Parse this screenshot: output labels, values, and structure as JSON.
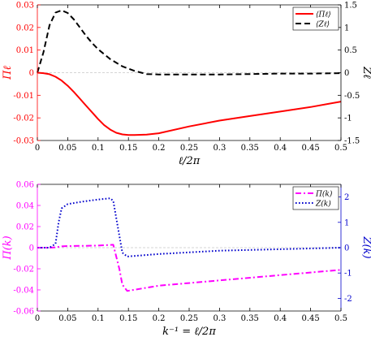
{
  "chart_data": [
    {
      "type": "line",
      "xlabel": "ℓ/2π",
      "ylabel_left": "Πℓ",
      "ylabel_right": "Zℓ",
      "xlim": [
        0,
        0.5
      ],
      "ylim_left": [
        -0.03,
        0.03
      ],
      "ylim_right": [
        -1.5,
        1.5
      ],
      "x_ticks": [
        "0",
        "0.05",
        "0.1",
        "0.15",
        "0.2",
        "0.25",
        "0.3",
        "0.35",
        "0.4",
        "0.45",
        "0.5"
      ],
      "y_ticks_left": [
        "0.03",
        "0.02",
        "0.01",
        "0",
        "-0.01",
        "-0.02",
        "-0.03"
      ],
      "y_ticks_right": [
        "1.5",
        "1",
        "0.5",
        "0",
        "-0.5",
        "-1",
        "-1.5"
      ],
      "legend_position": "top-right",
      "grid": false,
      "zero_line": true,
      "series": [
        {
          "name": "⟨Πℓ⟩",
          "axis": "left",
          "color": "#ff0000",
          "style": "solid",
          "x": [
            0,
            0.01,
            0.02,
            0.03,
            0.04,
            0.05,
            0.06,
            0.07,
            0.08,
            0.09,
            0.1,
            0.11,
            0.12,
            0.13,
            0.14,
            0.15,
            0.16,
            0.17,
            0.18,
            0.2,
            0.25,
            0.3,
            0.35,
            0.4,
            0.45,
            0.5
          ],
          "values": [
            0,
            -0.0002,
            -0.0007,
            -0.0018,
            -0.0035,
            -0.0058,
            -0.0085,
            -0.0115,
            -0.0145,
            -0.0175,
            -0.0205,
            -0.0232,
            -0.0252,
            -0.0266,
            -0.0273,
            -0.0276,
            -0.0276,
            -0.0275,
            -0.0274,
            -0.0268,
            -0.0238,
            -0.0212,
            -0.0192,
            -0.0172,
            -0.0152,
            -0.0128
          ]
        },
        {
          "name": "⟨Zℓ⟩",
          "axis": "right",
          "color": "#000000",
          "style": "dashed",
          "x": [
            0,
            0.01,
            0.02,
            0.03,
            0.04,
            0.05,
            0.06,
            0.07,
            0.08,
            0.09,
            0.1,
            0.12,
            0.14,
            0.16,
            0.18,
            0.2,
            0.25,
            0.3,
            0.35,
            0.4,
            0.45,
            0.5
          ],
          "values": [
            0,
            0.45,
            1.05,
            1.33,
            1.38,
            1.32,
            1.18,
            1.0,
            0.82,
            0.66,
            0.52,
            0.3,
            0.14,
            0.04,
            -0.03,
            -0.04,
            -0.04,
            -0.04,
            -0.03,
            -0.02,
            -0.02,
            -0.01
          ]
        }
      ]
    },
    {
      "type": "line",
      "xlabel": "k⁻¹ = ℓ/2π",
      "ylabel_left": "Π(k)",
      "ylabel_right": "Z(k)",
      "xlim": [
        0,
        0.5
      ],
      "ylim_left": [
        -0.06,
        0.06
      ],
      "ylim_right": [
        -2.5,
        2.5
      ],
      "x_ticks": [
        "0",
        "0.05",
        "0.1",
        "0.15",
        "0.2",
        "0.25",
        "0.3",
        "0.35",
        "0.4",
        "0.45",
        "0.5"
      ],
      "y_ticks_left": [
        "0.06",
        "0.04",
        "0.02",
        "0",
        "-0.02",
        "-0.04",
        "-0.06"
      ],
      "y_ticks_right": [
        "2",
        "1",
        "0",
        "-1",
        "-2"
      ],
      "legend_position": "top-right",
      "grid": false,
      "zero_line": true,
      "series": [
        {
          "name": "Π(k)",
          "axis": "left",
          "color": "#ff00ff",
          "style": "dashdot",
          "x": [
            0,
            0.02,
            0.03,
            0.04,
            0.05,
            0.08,
            0.1,
            0.125,
            0.135,
            0.14,
            0.148,
            0.2,
            0.3,
            0.4,
            0.5
          ],
          "values": [
            0,
            0,
            0.0003,
            0.0012,
            0.0015,
            0.0018,
            0.002,
            0.0028,
            -0.02,
            -0.035,
            -0.041,
            -0.036,
            -0.031,
            -0.026,
            -0.021
          ]
        },
        {
          "name": "Z(k)",
          "axis": "right",
          "color": "#0000cc",
          "style": "dotted",
          "x": [
            0,
            0.02,
            0.03,
            0.035,
            0.04,
            0.05,
            0.075,
            0.1,
            0.12,
            0.125,
            0.14,
            0.148,
            0.2,
            0.3,
            0.4,
            0.5
          ],
          "values": [
            0,
            0,
            0.15,
            1.0,
            1.55,
            1.72,
            1.82,
            1.9,
            1.95,
            1.85,
            -0.2,
            -0.35,
            -0.25,
            -0.12,
            -0.06,
            0
          ]
        }
      ]
    }
  ]
}
